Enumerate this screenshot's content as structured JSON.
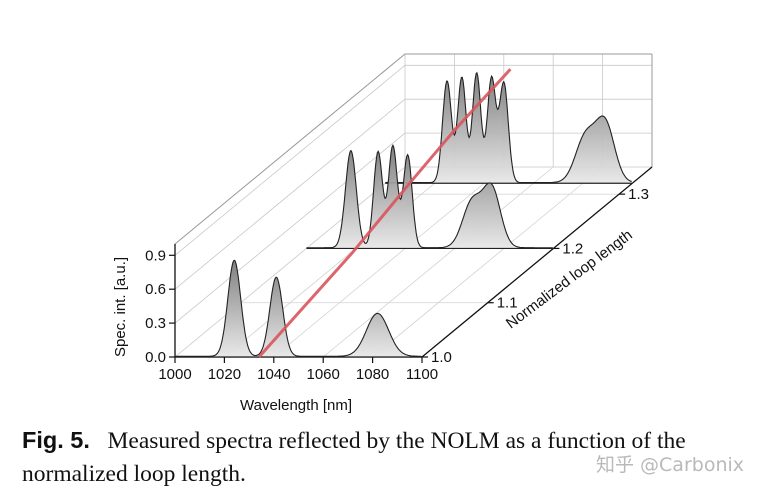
{
  "chart_data": {
    "type": "area",
    "style": "3d-waterfall",
    "title": "",
    "xlabel": "Wavelength [nm]",
    "ylabel": "Spec. int. [a.u.]",
    "zlabel": "Normalized loop length",
    "xlim": [
      1000,
      1100
    ],
    "ylim": [
      0,
      1.0
    ],
    "zlim": [
      1.0,
      1.35
    ],
    "xticks": [
      "1000",
      "1020",
      "1040",
      "1060",
      "1080",
      "1100"
    ],
    "yticks": [
      "0.0",
      "0.3",
      "0.6",
      "0.9"
    ],
    "zticks": [
      "1.0",
      "1.1",
      "1.2",
      "1.3"
    ],
    "grid": true,
    "highlight_color": "#d9555c",
    "fill_color": "#8a8a8a",
    "series": [
      {
        "z": 1.0,
        "peaks": [
          {
            "center": 1024,
            "width": 2.6,
            "height": 0.85
          },
          {
            "center": 1041,
            "width": 2.6,
            "height": 0.7
          },
          {
            "center": 1082,
            "width": 4.5,
            "height": 0.38
          }
        ]
      },
      {
        "z": 1.2,
        "peaks": [
          {
            "center": 1018,
            "width": 2.2,
            "height": 0.86
          },
          {
            "center": 1029,
            "width": 1.8,
            "height": 0.85
          },
          {
            "center": 1035,
            "width": 1.8,
            "height": 0.9
          },
          {
            "center": 1041,
            "width": 1.8,
            "height": 0.82
          },
          {
            "center": 1067,
            "width": 3.8,
            "height": 0.4
          },
          {
            "center": 1075,
            "width": 3.6,
            "height": 0.52
          }
        ]
      },
      {
        "z": 1.32,
        "peaks": [
          {
            "center": 1025,
            "width": 1.8,
            "height": 0.9
          },
          {
            "center": 1031,
            "width": 1.7,
            "height": 0.93
          },
          {
            "center": 1037,
            "width": 1.7,
            "height": 0.97
          },
          {
            "center": 1043,
            "width": 1.7,
            "height": 0.92
          },
          {
            "center": 1048,
            "width": 1.8,
            "height": 0.88
          },
          {
            "center": 1081,
            "width": 4.0,
            "height": 0.4
          },
          {
            "center": 1089,
            "width": 3.8,
            "height": 0.52
          }
        ]
      }
    ],
    "trend_line": [
      {
        "x": 1034,
        "z": 1.0
      },
      {
        "x": 1040,
        "z": 1.12
      },
      {
        "x": 1042,
        "z": 1.2
      },
      {
        "x": 1044,
        "z": 1.26
      },
      {
        "x": 1048,
        "z": 1.33
      }
    ]
  },
  "caption": {
    "label": "Fig. 5.",
    "text": "Measured spectra reflected by the NOLM as a function of the normalized loop length."
  },
  "watermark": "知乎 @Carbonix"
}
